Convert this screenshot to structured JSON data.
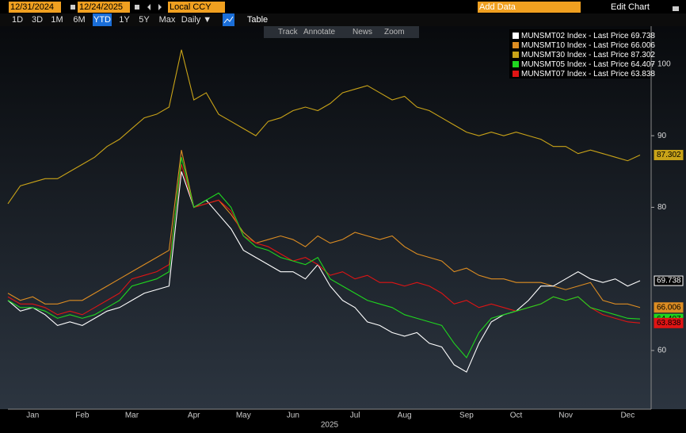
{
  "toolbar": {
    "start_date": "12/31/2024",
    "end_date": "12/24/2025",
    "currency": "Local CCY",
    "ranges": [
      "1D",
      "3D",
      "1M",
      "6M",
      "YTD",
      "1Y",
      "5Y",
      "Max"
    ],
    "active_range": "YTD",
    "frequency": "Daily ▼",
    "table": "Table",
    "add_data": "Add Data",
    "edit_chart": "Edit Chart",
    "tools": [
      "Track",
      "Annotate",
      "News",
      "Zoom"
    ]
  },
  "chart_data": {
    "type": "line",
    "xlabel": "2025",
    "categories": [
      null,
      null,
      "Jan",
      null,
      null,
      null,
      "Feb",
      null,
      null,
      null,
      "Mar",
      null,
      null,
      null,
      null,
      "Apr",
      null,
      null,
      null,
      "May",
      null,
      null,
      null,
      "Jun",
      null,
      null,
      null,
      null,
      "Jul",
      null,
      null,
      null,
      "Aug",
      null,
      null,
      null,
      null,
      "Sep",
      null,
      null,
      null,
      "Oct",
      null,
      null,
      null,
      "Nov",
      null,
      null,
      null,
      null,
      "Dec",
      null
    ],
    "ylim": [
      51.8,
      105.3
    ],
    "yticks": [
      60,
      80,
      90,
      100
    ],
    "grid": false,
    "legend": "top-right",
    "series": [
      {
        "name": "MUNSMT02 Index - Last Price",
        "color": "#ffffff",
        "values": [
          67,
          65.5,
          66,
          65,
          63.5,
          64,
          63.5,
          64.5,
          65.5,
          66,
          67,
          68,
          68.5,
          69,
          85,
          80,
          81,
          79,
          77,
          74,
          73,
          72,
          71,
          71,
          70,
          72,
          69,
          67,
          66,
          64,
          63.5,
          62.5,
          62,
          62.5,
          61,
          60.5,
          58,
          57,
          61,
          64,
          65,
          65.5,
          67,
          69,
          69,
          70,
          71,
          70,
          69.5,
          70,
          69,
          69.738
        ]
      },
      {
        "name": "MUNSMT10 Index - Last Price",
        "color": "#dd8d22",
        "values": [
          68,
          67,
          67.5,
          66.5,
          66.5,
          67,
          67,
          68,
          69,
          70,
          71,
          72,
          73,
          74,
          88,
          80,
          80.5,
          81,
          79,
          76.5,
          75,
          75.5,
          76,
          75.5,
          74.5,
          76,
          75,
          75.5,
          76.5,
          76,
          75.5,
          76,
          74.5,
          73.5,
          73,
          72.5,
          71,
          71.5,
          70.5,
          70,
          70,
          69.5,
          69.5,
          69.5,
          69,
          68.5,
          69,
          69.5,
          67,
          66.5,
          66.5,
          66.006
        ]
      },
      {
        "name": "MUNSMT30 Index - Last Price",
        "color": "#c9a318",
        "values": [
          80.5,
          83,
          83.5,
          84,
          84,
          85,
          86,
          87,
          88.5,
          89.5,
          91,
          92.5,
          93,
          94,
          102,
          95,
          96,
          93,
          92,
          91,
          90,
          92,
          92.5,
          93.5,
          94,
          93.5,
          94.5,
          96,
          96.5,
          97,
          96,
          95,
          95.5,
          94,
          93.5,
          92.5,
          91.5,
          90.5,
          90,
          90.5,
          90,
          90.5,
          90,
          89.5,
          88.5,
          88.5,
          87.5,
          88,
          87.5,
          87,
          86.5,
          87.302
        ]
      },
      {
        "name": "MUNSMT05 Index - Last Price",
        "color": "#1fd61f",
        "values": [
          67,
          66,
          66,
          65.5,
          64.5,
          65,
          64.5,
          65,
          66,
          67,
          69,
          69.5,
          70,
          71,
          87,
          80,
          81,
          82,
          80,
          76,
          74.5,
          74,
          73,
          72.5,
          72,
          73,
          70,
          69,
          68,
          67,
          66.5,
          66,
          65,
          64.5,
          64,
          63.5,
          61,
          59,
          62.5,
          64.5,
          65,
          65.5,
          66,
          66.5,
          67.5,
          67,
          67.5,
          66,
          65.5,
          65,
          64.5,
          64.407
        ]
      },
      {
        "name": "MUNSMT07 Index - Last Price",
        "color": "#e01414",
        "values": [
          67.5,
          66.5,
          66.5,
          66,
          65,
          65.5,
          65,
          66,
          67,
          68,
          70,
          70.5,
          71,
          72,
          86,
          80,
          80.5,
          81,
          79.5,
          76,
          75,
          74.5,
          73.5,
          72.5,
          73,
          72,
          70.5,
          71,
          70,
          70.5,
          69.5,
          69.5,
          69,
          69.5,
          69,
          68,
          66.5,
          67,
          66,
          66.5,
          66,
          65.5,
          66,
          66.5,
          67.5,
          67,
          67.5,
          66,
          65,
          64.5,
          64,
          63.838
        ]
      }
    ]
  }
}
